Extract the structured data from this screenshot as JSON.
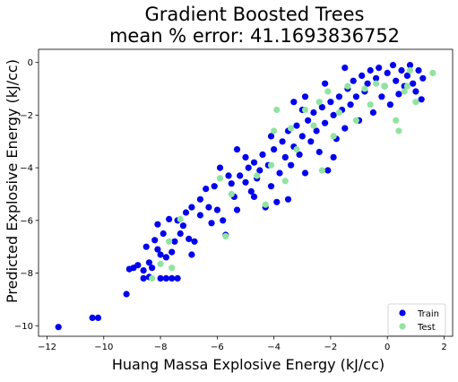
{
  "chart_data": {
    "type": "scatter",
    "title_lines": [
      "Gradient Boosted Trees",
      "mean % error: 41.1693836752"
    ],
    "xlabel": "Huang Massa Explosive Energy (kJ/cc)",
    "ylabel": "Predicted Explosive Energy (kJ/cc)",
    "xlim": [
      -12.3,
      2.3
    ],
    "ylim": [
      -10.4,
      0.5
    ],
    "xticks": [
      -12,
      -10,
      -8,
      -6,
      -4,
      -2,
      0,
      2
    ],
    "yticks": [
      -10,
      -8,
      -6,
      -4,
      -2,
      0
    ],
    "xtick_labels": [
      "−12",
      "−10",
      "−8",
      "−6",
      "−4",
      "−2",
      "0",
      "2"
    ],
    "ytick_labels": [
      "−10",
      "−8",
      "−6",
      "−4",
      "−2",
      "0"
    ],
    "legend_position": "lower-right",
    "colors": {
      "train": "#0000ee",
      "test": "#90e4a0"
    },
    "series": [
      {
        "name": "Train",
        "color": "#0000ee",
        "points": [
          [
            -11.6,
            -10.05
          ],
          [
            -10.4,
            -9.7
          ],
          [
            -10.2,
            -9.7
          ],
          [
            -9.2,
            -8.8
          ],
          [
            -9.1,
            -7.85
          ],
          [
            -8.95,
            -7.8
          ],
          [
            -8.8,
            -7.7
          ],
          [
            -8.6,
            -7.9
          ],
          [
            -8.4,
            -7.6
          ],
          [
            -8.3,
            -7.8
          ],
          [
            -8.6,
            -8.2
          ],
          [
            -8.4,
            -8.15
          ],
          [
            -8.0,
            -8.2
          ],
          [
            -7.8,
            -8.2
          ],
          [
            -7.6,
            -8.2
          ],
          [
            -7.4,
            -8.2
          ],
          [
            -8.1,
            -7.1
          ],
          [
            -8.2,
            -6.75
          ],
          [
            -8.0,
            -7.3
          ],
          [
            -7.8,
            -7.4
          ],
          [
            -7.6,
            -7.2
          ],
          [
            -7.5,
            -6.8
          ],
          [
            -7.3,
            -6.5
          ],
          [
            -7.0,
            -6.7
          ],
          [
            -6.8,
            -6.8
          ],
          [
            -6.9,
            -7.3
          ],
          [
            -8.1,
            -6.15
          ],
          [
            -7.7,
            -5.95
          ],
          [
            -7.4,
            -6.0
          ],
          [
            -7.1,
            -5.7
          ],
          [
            -6.9,
            -5.5
          ],
          [
            -6.6,
            -5.2
          ],
          [
            -6.3,
            -5.5
          ],
          [
            -6.2,
            -6.1
          ],
          [
            -6.0,
            -5.6
          ],
          [
            -5.8,
            -6.0
          ],
          [
            -5.7,
            -6.55
          ],
          [
            -5.4,
            -5.1
          ],
          [
            -5.3,
            -5.6
          ],
          [
            -5.5,
            -4.6
          ],
          [
            -5.2,
            -4.3
          ],
          [
            -5.0,
            -4.55
          ],
          [
            -4.9,
            -4.0
          ],
          [
            -4.8,
            -4.9
          ],
          [
            -4.7,
            -3.8
          ],
          [
            -4.6,
            -4.4
          ],
          [
            -4.5,
            -4.1
          ],
          [
            -4.4,
            -3.5
          ],
          [
            -4.3,
            -5.5
          ],
          [
            -4.2,
            -3.9
          ],
          [
            -4.1,
            -4.7
          ],
          [
            -4.0,
            -3.3
          ],
          [
            -3.9,
            -5.3
          ],
          [
            -3.8,
            -4.2
          ],
          [
            -3.7,
            -3.0
          ],
          [
            -3.6,
            -3.6
          ],
          [
            -3.5,
            -2.6
          ],
          [
            -3.4,
            -3.9
          ],
          [
            -3.3,
            -3.2
          ],
          [
            -3.2,
            -2.4
          ],
          [
            -3.1,
            -3.5
          ],
          [
            -3.0,
            -2.8
          ],
          [
            -2.9,
            -4.2
          ],
          [
            -2.8,
            -2.2
          ],
          [
            -2.7,
            -3.0
          ],
          [
            -2.6,
            -1.9
          ],
          [
            -2.5,
            -2.6
          ],
          [
            -2.4,
            -3.4
          ],
          [
            -2.3,
            -1.7
          ],
          [
            -2.2,
            -2.3
          ],
          [
            -2.1,
            -4.1
          ],
          [
            -2.0,
            -1.5
          ],
          [
            -1.9,
            -2.0
          ],
          [
            -1.8,
            -2.9
          ],
          [
            -1.7,
            -1.3
          ],
          [
            -1.6,
            -1.8
          ],
          [
            -1.5,
            -2.5
          ],
          [
            -1.4,
            -1.0
          ],
          [
            -1.3,
            -1.6
          ],
          [
            -1.2,
            -0.7
          ],
          [
            -1.1,
            -1.3
          ],
          [
            -1.0,
            -2.2
          ],
          [
            -0.9,
            -0.5
          ],
          [
            -0.8,
            -1.1
          ],
          [
            -0.7,
            -0.8
          ],
          [
            -0.6,
            -0.3
          ],
          [
            -0.5,
            -1.9
          ],
          [
            -0.4,
            -0.6
          ],
          [
            -0.3,
            -0.2
          ],
          [
            -0.2,
            -1.3
          ],
          [
            -0.1,
            -0.9
          ],
          [
            0.0,
            -0.4
          ],
          [
            0.1,
            -1.6
          ],
          [
            0.2,
            -0.1
          ],
          [
            0.3,
            -0.7
          ],
          [
            0.4,
            -1.2
          ],
          [
            0.5,
            -0.3
          ],
          [
            0.6,
            -0.9
          ],
          [
            0.7,
            -0.5
          ],
          [
            0.8,
            -0.1
          ],
          [
            0.9,
            -0.8
          ],
          [
            1.0,
            -1.1
          ],
          [
            1.1,
            -0.3
          ],
          [
            1.2,
            -1.4
          ],
          [
            1.25,
            -0.6
          ],
          [
            -1.5,
            -0.2
          ],
          [
            -2.2,
            -0.8
          ],
          [
            -3.3,
            -1.5
          ],
          [
            -2.9,
            -1.3
          ],
          [
            -5.9,
            -4.0
          ],
          [
            -5.3,
            -3.3
          ],
          [
            -5.6,
            -4.3
          ],
          [
            -6.1,
            -4.7
          ],
          [
            -6.6,
            -5.8
          ],
          [
            -7.2,
            -6.2
          ],
          [
            -4.1,
            -2.8
          ],
          [
            -3.5,
            -5.2
          ],
          [
            -3.0,
            -1.8
          ],
          [
            -1.9,
            -3.6
          ],
          [
            -4.7,
            -5.1
          ],
          [
            -6.4,
            -4.8
          ],
          [
            -8.5,
            -7.0
          ],
          [
            -7.9,
            -6.5
          ],
          [
            -5.0,
            -3.6
          ]
        ]
      },
      {
        "name": "Test",
        "color": "#90e4a0",
        "points": [
          [
            -8.3,
            -8.2
          ],
          [
            -8.0,
            -7.65
          ],
          [
            -7.7,
            -6.8
          ],
          [
            -7.6,
            -7.8
          ],
          [
            -7.3,
            -5.95
          ],
          [
            -5.9,
            -4.4
          ],
          [
            -5.7,
            -6.6
          ],
          [
            -5.5,
            -5.0
          ],
          [
            -4.6,
            -4.3
          ],
          [
            -4.3,
            -5.4
          ],
          [
            -4.1,
            -3.9
          ],
          [
            -4.0,
            -2.6
          ],
          [
            -3.6,
            -4.5
          ],
          [
            -3.4,
            -2.5
          ],
          [
            -3.2,
            -3.3
          ],
          [
            -2.9,
            -1.8
          ],
          [
            -2.6,
            -2.4
          ],
          [
            -2.4,
            -1.5
          ],
          [
            -2.1,
            -1.1
          ],
          [
            -1.9,
            -2.8
          ],
          [
            -1.7,
            -1.9
          ],
          [
            -1.4,
            -0.9
          ],
          [
            -1.1,
            -2.2
          ],
          [
            -0.8,
            -1.0
          ],
          [
            -0.6,
            -1.6
          ],
          [
            -0.4,
            -0.8
          ],
          [
            -0.1,
            -0.9
          ],
          [
            0.3,
            -2.2
          ],
          [
            0.4,
            -2.6
          ],
          [
            0.6,
            -1.1
          ],
          [
            0.7,
            -0.9
          ],
          [
            0.8,
            -0.3
          ],
          [
            1.0,
            -1.5
          ],
          [
            1.6,
            -0.4
          ],
          [
            -2.3,
            -4.1
          ],
          [
            -3.9,
            -1.8
          ]
        ]
      }
    ]
  }
}
